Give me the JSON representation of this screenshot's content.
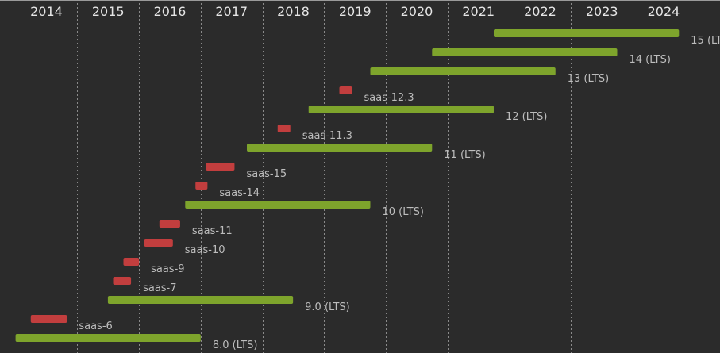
{
  "chart_data": {
    "type": "gantt",
    "title": "",
    "xlabel": "",
    "ylabel": "",
    "x_ticks": [
      "2014",
      "2015",
      "2016",
      "2017",
      "2018",
      "2019",
      "2020",
      "2021",
      "2022",
      "2023",
      "2024"
    ],
    "xlim": [
      "2013-10-01",
      "2025-06-01"
    ],
    "grid": "vertical dashed",
    "colors": {
      "background": "#2b2b2b",
      "lts": "#7ea42c",
      "saas": "#c23e3e",
      "label": "#bdbdbd",
      "tick": "#e6e6e6",
      "grid": "#8a8a8a"
    },
    "bars": [
      {
        "label": "15 (LTS)",
        "kind": "lts",
        "start": "2021-10-01",
        "end": "2024-10-01"
      },
      {
        "label": "14 (LTS)",
        "kind": "lts",
        "start": "2020-10-01",
        "end": "2023-10-01"
      },
      {
        "label": "13 (LTS)",
        "kind": "lts",
        "start": "2019-10-01",
        "end": "2022-10-01"
      },
      {
        "label": "saas-12.3",
        "kind": "saas",
        "start": "2019-04-01",
        "end": "2019-06-15"
      },
      {
        "label": "12 (LTS)",
        "kind": "lts",
        "start": "2018-10-01",
        "end": "2021-10-01"
      },
      {
        "label": "saas-11.3",
        "kind": "saas",
        "start": "2018-04-01",
        "end": "2018-06-15"
      },
      {
        "label": "11 (LTS)",
        "kind": "lts",
        "start": "2017-10-01",
        "end": "2020-10-01"
      },
      {
        "label": "saas-15",
        "kind": "saas",
        "start": "2017-02-01",
        "end": "2017-07-20"
      },
      {
        "label": "saas-14",
        "kind": "saas",
        "start": "2016-12-01",
        "end": "2017-02-10"
      },
      {
        "label": "10 (LTS)",
        "kind": "lts",
        "start": "2016-10-01",
        "end": "2019-10-01"
      },
      {
        "label": "saas-11",
        "kind": "saas",
        "start": "2016-05-01",
        "end": "2016-09-01"
      },
      {
        "label": "saas-10",
        "kind": "saas",
        "start": "2016-02-01",
        "end": "2016-07-20"
      },
      {
        "label": "saas-9",
        "kind": "saas",
        "start": "2015-10-01",
        "end": "2016-01-01"
      },
      {
        "label": "saas-7",
        "kind": "saas",
        "start": "2015-08-01",
        "end": "2015-11-15"
      },
      {
        "label": "9.0 (LTS)",
        "kind": "lts",
        "start": "2015-07-01",
        "end": "2018-07-01"
      },
      {
        "label": "saas-6",
        "kind": "saas",
        "start": "2014-04-01",
        "end": "2014-11-01"
      },
      {
        "label": "8.0 (LTS)",
        "kind": "lts",
        "start": "2014-01-01",
        "end": "2017-01-01"
      }
    ]
  }
}
